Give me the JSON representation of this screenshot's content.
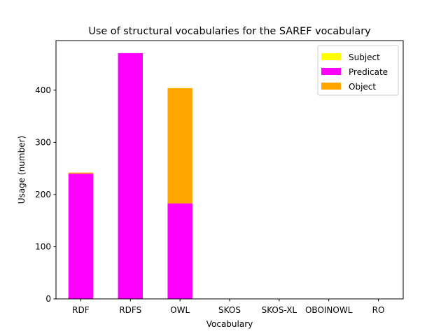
{
  "chart_data": {
    "type": "bar",
    "title": "Use of structural vocabularies for the SAREF vocabulary",
    "xlabel": "Vocabulary",
    "ylabel": "Usage (number)",
    "categories": [
      "RDF",
      "RDFS",
      "OWL",
      "SKOS",
      "SKOS-XL",
      "OBOINOWL",
      "RO"
    ],
    "stacked": true,
    "series": [
      {
        "name": "Subject",
        "color": "#ffff00",
        "values": [
          0,
          0,
          0,
          0,
          0,
          0,
          0
        ]
      },
      {
        "name": "Predicate",
        "color": "#ff00ff",
        "values": [
          240,
          471,
          183,
          0,
          0,
          0,
          0
        ]
      },
      {
        "name": "Object",
        "color": "#ffa500",
        "values": [
          2,
          0,
          221,
          0,
          0,
          0,
          0
        ]
      }
    ],
    "ylim": [
      0,
      495
    ],
    "yticks": [
      0,
      100,
      200,
      300,
      400
    ],
    "grid": false,
    "legend_position": "top-right"
  }
}
